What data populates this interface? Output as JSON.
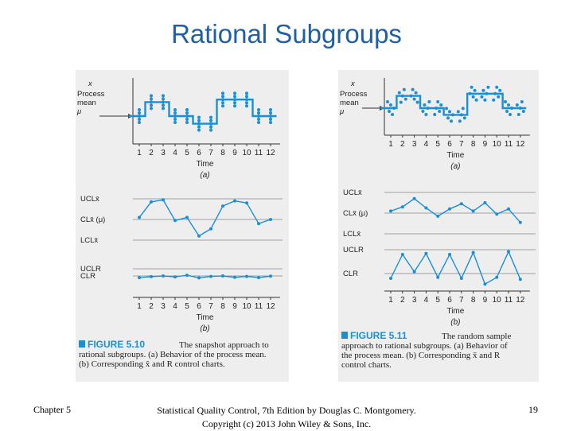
{
  "slide": {
    "title": "Rational Subgroups",
    "footer_left": "Chapter 5",
    "footer_center_line1": "Statistical Quality Control, 7th Edition by Douglas C. Montgomery.",
    "footer_center_line2": "Copyright (c) 2013 John Wiley & Sons, Inc.",
    "page_number": "19"
  },
  "colors": {
    "title": "#1f5fa8",
    "series": "#1a8fd6",
    "grid": "#a0a0a0",
    "panel": "#eeeeee"
  },
  "figures": [
    {
      "panel_a": {
        "y_symbol": "x",
        "y_label_lines": [
          "Process",
          "mean",
          "μ"
        ],
        "x_label": "Time",
        "tag": "(a)"
      },
      "panel_b": {
        "upper_labels": [
          "UCLx̄",
          "CLx̄ (μ)",
          "LCLx̄"
        ],
        "lower_labels": [
          "UCLR",
          "CLR"
        ],
        "x_label": "Time",
        "tag": "(b)"
      },
      "caption_head": "FIGURE 5.10",
      "caption_lines": [
        "The snapshot approach to",
        "rational subgroups. (a) Behavior of the process mean.",
        "(b) Corresponding x̄ and R control charts."
      ]
    },
    {
      "panel_a": {
        "y_symbol": "x",
        "y_label_lines": [
          "Process",
          "mean",
          "μ"
        ],
        "x_label": "Time",
        "tag": "(a)"
      },
      "panel_b": {
        "upper_labels": [
          "UCLx̄",
          "CLx̄ (μ)",
          "LCLx̄"
        ],
        "lower_labels": [
          "UCLR",
          "CLR"
        ],
        "x_label": "Time",
        "tag": "(b)"
      },
      "caption_head": "FIGURE 5.11",
      "caption_lines": [
        "The random sample",
        "approach to rational subgroups. (a) Behavior of",
        "the process mean. (b) Corresponding x̄ and R",
        "control charts."
      ]
    }
  ],
  "chart_data": [
    {
      "type": "line",
      "figure": "FIGURE 5.10 (a)",
      "categories": [
        "1",
        "2",
        "3",
        "4",
        "5",
        "6",
        "7",
        "8",
        "9",
        "10",
        "11",
        "12"
      ],
      "series": [
        {
          "values": [
            0,
            2.2,
            2.2,
            0,
            0,
            -1.2,
            -1.2,
            2.6,
            2.6,
            2.6,
            0,
            0
          ]
        }
      ],
      "points_per_subgroup": 5,
      "xlabel": "Time",
      "ylabel": "Process mean μ"
    },
    {
      "type": "line",
      "figure": "FIGURE 5.10 (b) x-bar chart",
      "categories": [
        "1",
        "2",
        "3",
        "4",
        "5",
        "6",
        "7",
        "8",
        "9",
        "10",
        "11",
        "12"
      ],
      "series": [
        {
          "values": [
            0.2,
            1.7,
            1.9,
            -0.1,
            0.2,
            -1.6,
            -0.9,
            1.3,
            1.8,
            1.6,
            -0.4,
            0.0
          ]
        }
      ],
      "limits": {
        "UCL": 2,
        "CL": 0,
        "LCL": -2
      }
    },
    {
      "type": "line",
      "figure": "FIGURE 5.10 (b) R chart",
      "categories": [
        "1",
        "2",
        "3",
        "4",
        "5",
        "6",
        "7",
        "8",
        "9",
        "10",
        "11",
        "12"
      ],
      "series": [
        {
          "values": [
            0.3,
            0.7,
            1.0,
            0.6,
            1.3,
            0.2,
            0.8,
            1.0,
            0.4,
            0.8,
            0.3,
            0.9
          ]
        }
      ],
      "limits": {
        "UCL": 4,
        "CL": 1.0
      },
      "xlabel": "Time"
    },
    {
      "type": "line",
      "figure": "FIGURE 5.11 (a)",
      "categories": [
        "1",
        "2",
        "3",
        "4",
        "5",
        "6",
        "7",
        "8",
        "9",
        "10",
        "11",
        "12"
      ],
      "series": [
        {
          "values": [
            0,
            2.2,
            2.2,
            0,
            0,
            -1.2,
            -1.2,
            2.6,
            2.6,
            2.6,
            0,
            0
          ]
        }
      ],
      "points_per_subgroup": 5,
      "xlabel": "Time",
      "ylabel": "Process mean μ"
    },
    {
      "type": "line",
      "figure": "FIGURE 5.11 (b) x-bar chart",
      "categories": [
        "1",
        "2",
        "3",
        "4",
        "5",
        "6",
        "7",
        "8",
        "9",
        "10",
        "11",
        "12"
      ],
      "series": [
        {
          "values": [
            0.2,
            0.6,
            1.4,
            0.5,
            -0.3,
            0.4,
            0.9,
            0.2,
            1.0,
            -0.1,
            0.4,
            -0.9
          ]
        }
      ],
      "limits": {
        "UCL": 2,
        "CL": 0,
        "LCL": -2
      }
    },
    {
      "type": "line",
      "figure": "FIGURE 5.11 (b) R chart",
      "categories": [
        "1",
        "2",
        "3",
        "4",
        "5",
        "6",
        "7",
        "8",
        "9",
        "10",
        "11",
        "12"
      ],
      "series": [
        {
          "values": [
            0.5,
            3.0,
            1.2,
            3.1,
            0.6,
            3.0,
            0.5,
            3.2,
            -0.1,
            0.6,
            3.3,
            0.4
          ]
        }
      ],
      "limits": {
        "UCL": 3.5,
        "CL": 1.0
      },
      "xlabel": "Time"
    }
  ]
}
